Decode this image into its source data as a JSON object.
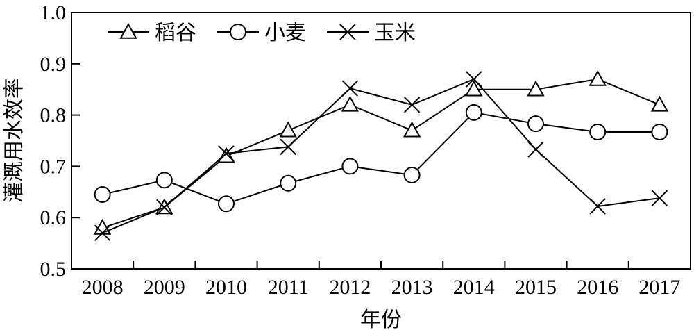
{
  "chart_data": {
    "type": "line",
    "title": "",
    "xlabel": "年份",
    "ylabel": "灌溉用水效率",
    "categories": [
      "2008",
      "2009",
      "2010",
      "2011",
      "2012",
      "2013",
      "2014",
      "2015",
      "2016",
      "2017"
    ],
    "ylim": [
      0.5,
      1.0
    ],
    "yticks": [
      "0.5",
      "0.6",
      "0.7",
      "0.8",
      "0.9",
      "1.0"
    ],
    "grid": false,
    "legend_position": "top-left",
    "series": [
      {
        "name": "稻谷",
        "marker": "triangle",
        "values": [
          0.58,
          0.62,
          0.72,
          0.77,
          0.82,
          0.77,
          0.85,
          0.85,
          0.87,
          0.82
        ]
      },
      {
        "name": "小麦",
        "marker": "circle",
        "values": [
          0.645,
          0.673,
          0.627,
          0.667,
          0.7,
          0.683,
          0.805,
          0.783,
          0.767,
          0.767
        ]
      },
      {
        "name": "玉米",
        "marker": "x",
        "values": [
          0.57,
          0.62,
          0.725,
          0.738,
          0.852,
          0.82,
          0.87,
          0.733,
          0.622,
          0.638
        ]
      }
    ],
    "line_color": "#000000"
  }
}
